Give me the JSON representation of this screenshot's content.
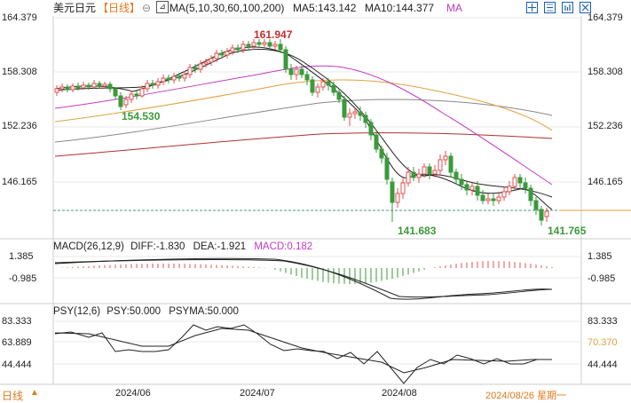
{
  "header": {
    "symbol": "美元日元",
    "period": "【日线】",
    "ma_params": "MA(5,10,30,60,100,200)",
    "ma5": "MA5:143.142",
    "ma10": "MA10:144.377",
    "ma_more": "MA",
    "tool_icons": [
      "grid-icon",
      "minus-zoom-icon",
      "bar-chart-icon",
      "close-icon"
    ]
  },
  "price_axis": {
    "ticks": [
      "164.379",
      "158.308",
      "152.236",
      "146.165"
    ],
    "high_label": "161.947",
    "low_label_1": "154.530",
    "low_label_2": "141.683",
    "last_label": "141.765"
  },
  "macd": {
    "title": "MACD(26,12,9)",
    "diff": "DIFF:-1.830",
    "dea": "DEA:-1.921",
    "macd": "MACD:0.182",
    "ticks": [
      "1.385",
      "-0.985"
    ]
  },
  "psy": {
    "title": "PSY(12,6)",
    "psy": "PSY:50.000",
    "psyma": "PSYMA:50.000",
    "ticks": [
      "83.333",
      "63.889",
      "44.444"
    ],
    "right_ticks": [
      "83.333",
      "70.370",
      "44.444"
    ]
  },
  "footer": {
    "period_tab": "日线",
    "dates": [
      "2024/06",
      "2024/07",
      "2024/08"
    ],
    "current_date": "2024/08/26 星期一"
  },
  "colors": {
    "up": "#e05050",
    "down": "#3b9a3b",
    "ma_long": "#e0a040",
    "ma_purple": "#c23ac2",
    "accent": "#e07a1f"
  }
}
